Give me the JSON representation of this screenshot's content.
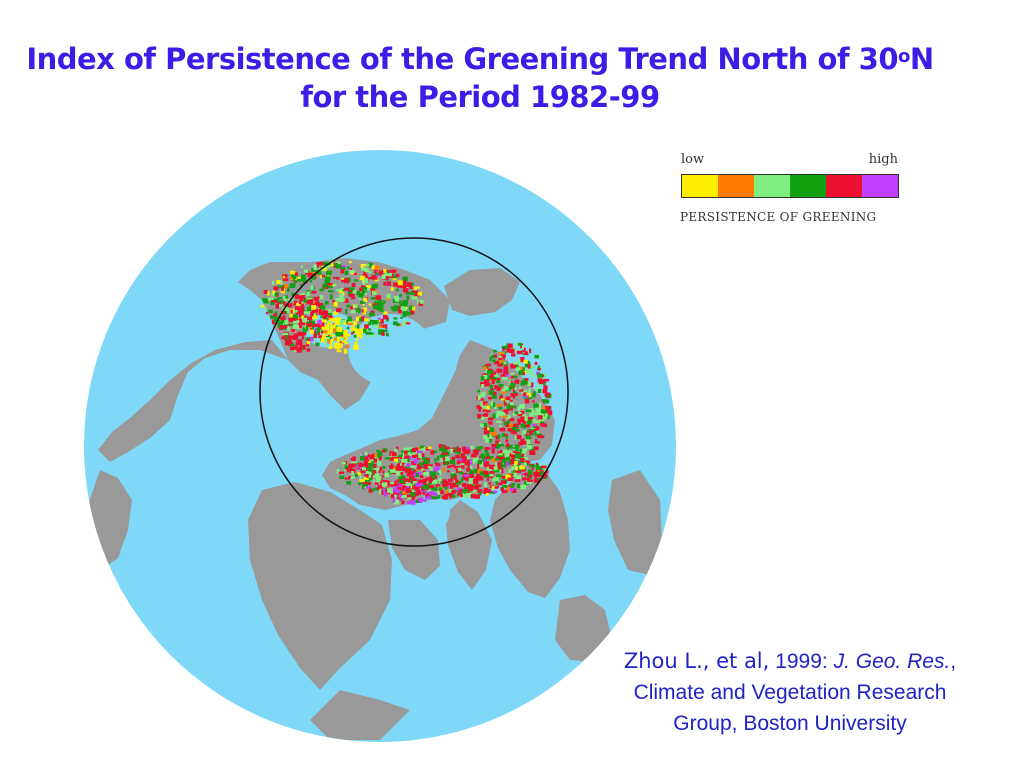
{
  "title": {
    "line1": "Index of Persistence of the Greening Trend North of 30",
    "line1_degree": "o",
    "line1_suffix": "N",
    "line2": "for the Period 1982-99"
  },
  "legend": {
    "low_label": "low",
    "high_label": "high",
    "caption": "PERSISTENCE  OF  GREENING",
    "colors": [
      "#ffee00",
      "#ff7a00",
      "#80ee80",
      "#10a010",
      "#ee1030",
      "#c040ff"
    ]
  },
  "map": {
    "ocean_color": "#7fd8f8",
    "land_color": "#999999"
  },
  "citation": {
    "author": "Zhou L., et al,",
    "year": " 1999: ",
    "journal": "J. Geo. Res.",
    "comma": ",",
    "line2": "Climate and Vegetation Research",
    "line3": "Group, Boston University"
  }
}
